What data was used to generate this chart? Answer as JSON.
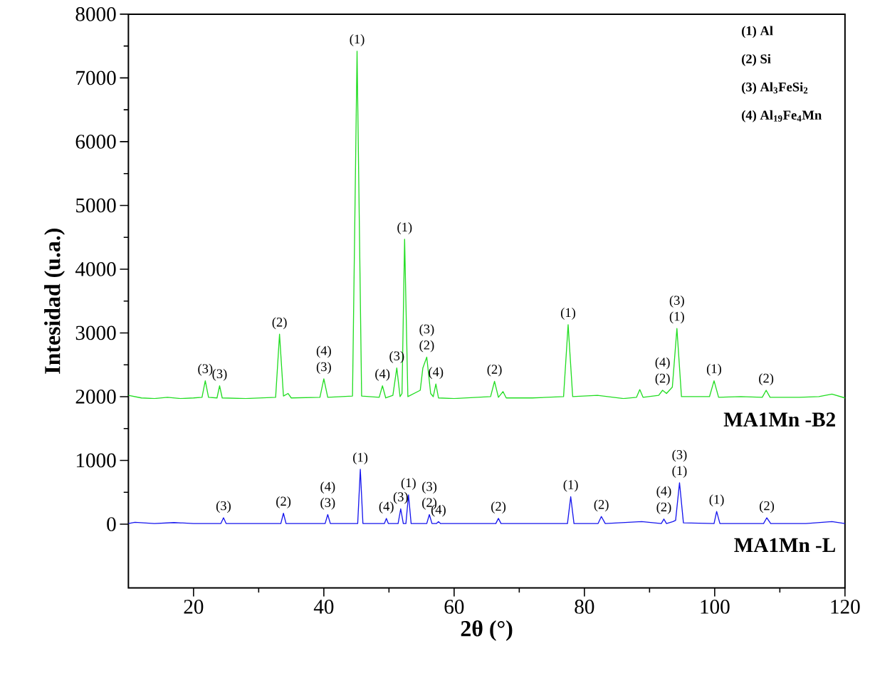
{
  "chart_data": {
    "type": "line",
    "xlabel": "2θ (°)",
    "ylabel": "Intesidad (u.a.)",
    "xlim": [
      10,
      120
    ],
    "ylim": [
      -1000,
      8000
    ],
    "xticks": [
      20,
      40,
      60,
      80,
      100,
      120
    ],
    "yticks": [
      0,
      1000,
      2000,
      3000,
      4000,
      5000,
      6000,
      7000,
      8000
    ],
    "grid": false,
    "legend": false,
    "series": [
      {
        "name": "MA1Mn -B2",
        "color": "#22dd22",
        "x": [
          10,
          12,
          14,
          16,
          18,
          20,
          21.3,
          21.8,
          22.3,
          23.6,
          24.0,
          24.4,
          28,
          32.6,
          33.2,
          33.8,
          34.5,
          35,
          39.4,
          40.0,
          40.6,
          44.4,
          45.1,
          45.8,
          48.5,
          49.0,
          49.5,
          50.6,
          51.2,
          51.7,
          52.0,
          52.4,
          52.9,
          54.8,
          55.2,
          55.8,
          56.4,
          56.8,
          57.2,
          57.6,
          60,
          65.6,
          66.2,
          66.8,
          67.5,
          68,
          72,
          76.8,
          77.5,
          78.2,
          82,
          86,
          88.0,
          88.5,
          89.0,
          91.4,
          92.0,
          92.6,
          93.5,
          94.2,
          94.9,
          99.2,
          99.9,
          100.6,
          104,
          107.3,
          107.9,
          108.5,
          113,
          116,
          118,
          120
        ],
        "values": [
          2020,
          1980,
          1970,
          1990,
          1970,
          1980,
          1990,
          2250,
          1990,
          1980,
          2170,
          1980,
          1970,
          1990,
          2980,
          2010,
          2050,
          1980,
          1990,
          2280,
          1990,
          2010,
          7420,
          2010,
          1990,
          2170,
          1980,
          2020,
          2450,
          2000,
          2050,
          4470,
          2000,
          2100,
          2450,
          2620,
          2050,
          2000,
          2200,
          1980,
          1970,
          2000,
          2240,
          1990,
          2080,
          1980,
          1980,
          2000,
          3130,
          2000,
          2020,
          1970,
          1990,
          2110,
          1990,
          2020,
          2100,
          2050,
          2150,
          3070,
          2000,
          2000,
          2250,
          1990,
          2000,
          1990,
          2100,
          1990,
          1990,
          2000,
          2040,
          1980
        ]
      },
      {
        "name": "MA1Mn -L",
        "color": "#1515ee",
        "x": [
          10,
          11,
          14,
          17,
          20,
          24.2,
          24.6,
          25.0,
          33.4,
          33.8,
          34.2,
          40.2,
          40.6,
          41.0,
          45.2,
          45.6,
          46.0,
          49.3,
          49.6,
          49.9,
          51.4,
          51.8,
          52.2,
          52.6,
          53.0,
          53.4,
          55.8,
          56.2,
          56.6,
          57.3,
          57.6,
          57.9,
          66.4,
          66.8,
          67.2,
          77.4,
          77.9,
          78.4,
          82.1,
          82.6,
          83.2,
          88.8,
          91.8,
          92.2,
          92.6,
          93.6,
          94.0,
          94.6,
          95.2,
          99.9,
          100.3,
          100.8,
          107.5,
          108.0,
          108.6,
          114,
          118,
          120
        ],
        "values": [
          10,
          30,
          10,
          25,
          10,
          10,
          100,
          10,
          10,
          170,
          10,
          10,
          150,
          10,
          10,
          860,
          10,
          10,
          90,
          10,
          10,
          240,
          10,
          10,
          460,
          10,
          10,
          150,
          10,
          10,
          40,
          10,
          10,
          90,
          10,
          10,
          430,
          10,
          10,
          120,
          10,
          40,
          10,
          80,
          10,
          40,
          60,
          650,
          20,
          10,
          200,
          10,
          10,
          100,
          10,
          10,
          40,
          10
        ]
      }
    ],
    "annotations": [
      "(1) Al",
      "(2) Si",
      "(3) Al$_{3}$FeSi$_{2}$",
      "(4) Al$_{19}$Fe$_{4}$Mn",
      {
        "text": "(3)",
        "x": 21.8,
        "y": 2250
      },
      {
        "text": "(3)",
        "x": 24.0,
        "y": 2170
      },
      {
        "text": "(2)",
        "x": 33.2,
        "y": 2980
      },
      {
        "text": "(3)",
        "x": 40.0,
        "y": 2280
      },
      {
        "text": "(4)",
        "x": 40.0,
        "y": 2280
      },
      {
        "text": "(1)",
        "x": 45.1,
        "y": 7420
      },
      {
        "text": "(4)",
        "x": 49.0,
        "y": 2170
      },
      {
        "text": "(3)",
        "x": 51.2,
        "y": 2450
      },
      {
        "text": "(1)",
        "x": 52.4,
        "y": 4470
      },
      {
        "text": "(2)",
        "x": 55.8,
        "y": 2620
      },
      {
        "text": "(3)",
        "x": 55.8,
        "y": 2620
      },
      {
        "text": "(4)",
        "x": 57.2,
        "y": 2200
      },
      {
        "text": "(2)",
        "x": 66.2,
        "y": 2240
      },
      {
        "text": "(1)",
        "x": 77.5,
        "y": 3130
      },
      {
        "text": "(2)",
        "x": 92.0,
        "y": 2100
      },
      {
        "text": "(4)",
        "x": 92.0,
        "y": 2100
      },
      {
        "text": "(1)",
        "x": 94.2,
        "y": 3070
      },
      {
        "text": "(3)",
        "x": 94.2,
        "y": 3070
      },
      {
        "text": "(1)",
        "x": 99.9,
        "y": 2250
      },
      {
        "text": "(2)",
        "x": 107.9,
        "y": 2100
      },
      {
        "text": "(3)",
        "x": 24.6,
        "y": 100
      },
      {
        "text": "(2)",
        "x": 33.8,
        "y": 170
      },
      {
        "text": "(3)",
        "x": 40.6,
        "y": 150
      },
      {
        "text": "(4)",
        "x": 40.6,
        "y": 150
      },
      {
        "text": "(1)",
        "x": 45.6,
        "y": 860
      },
      {
        "text": "(4)",
        "x": 49.6,
        "y": 90
      },
      {
        "text": "(3)",
        "x": 51.8,
        "y": 240
      },
      {
        "text": "(1)",
        "x": 53.0,
        "y": 460
      },
      {
        "text": "(2)",
        "x": 56.2,
        "y": 150
      },
      {
        "text": "(3)",
        "x": 56.2,
        "y": 150
      },
      {
        "text": "(4)",
        "x": 57.6,
        "y": 40
      },
      {
        "text": "(2)",
        "x": 66.8,
        "y": 90
      },
      {
        "text": "(1)",
        "x": 77.9,
        "y": 430
      },
      {
        "text": "(2)",
        "x": 82.6,
        "y": 120
      },
      {
        "text": "(2)",
        "x": 92.2,
        "y": 80
      },
      {
        "text": "(4)",
        "x": 92.2,
        "y": 80
      },
      {
        "text": "(1)",
        "x": 94.6,
        "y": 650
      },
      {
        "text": "(3)",
        "x": 94.6,
        "y": 650
      },
      {
        "text": "(1)",
        "x": 100.3,
        "y": 200
      },
      {
        "text": "(2)",
        "x": 108.0,
        "y": 100
      }
    ]
  }
}
